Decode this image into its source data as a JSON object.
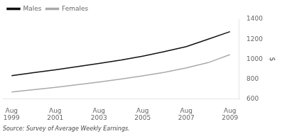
{
  "chart_data": {
    "type": "line",
    "x": [
      1999,
      2000,
      2001,
      2002,
      2003,
      2004,
      2005,
      2006,
      2007,
      2008,
      2009
    ],
    "series": [
      {
        "name": "Males",
        "color": "#111111",
        "values": [
          835,
          865,
          893,
          925,
          957,
          990,
          1030,
          1075,
          1125,
          1200,
          1275
        ]
      },
      {
        "name": "Females",
        "color": "#aaaaaa",
        "values": [
          672,
          695,
          718,
          744,
          770,
          800,
          833,
          868,
          912,
          965,
          1045
        ]
      }
    ],
    "y_label": "$",
    "xlim": [
      1998.6,
      2009.4
    ],
    "xticks": [
      {
        "value": 1999,
        "label": "Aug\n1999"
      },
      {
        "value": 2001,
        "label": "Aug\n2001"
      },
      {
        "value": 2003,
        "label": "Aug\n2003"
      },
      {
        "value": 2005,
        "label": "Aug\n2005"
      },
      {
        "value": 2007,
        "label": "Aug\n2007"
      },
      {
        "value": 2009,
        "label": "Aug\n2009"
      }
    ],
    "ylim": [
      600,
      1400
    ],
    "yticks": [
      600,
      800,
      1000,
      1200,
      1400
    ],
    "grid": false,
    "legend": "upper left",
    "annotations": [
      "Source: Survey of Average Weekly Earnings."
    ]
  }
}
